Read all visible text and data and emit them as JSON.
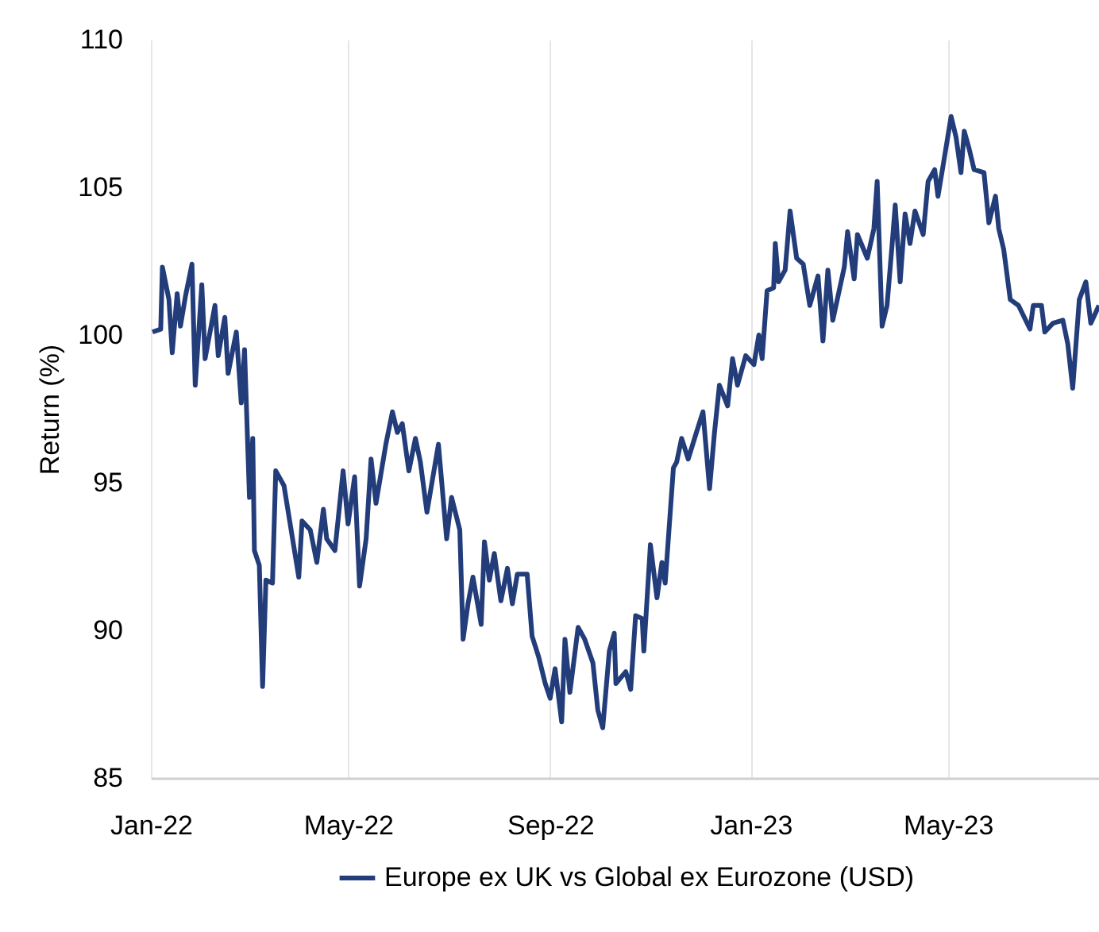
{
  "chart_data": {
    "type": "line",
    "ylabel": "Return (%)",
    "x": [
      "2022-01-02",
      "2022-01-07",
      "2022-01-08",
      "2022-01-12",
      "2022-01-14",
      "2022-01-17",
      "2022-01-19",
      "2022-01-22",
      "2022-01-26",
      "2022-01-28",
      "2022-02-01",
      "2022-02-03",
      "2022-02-09",
      "2022-02-11",
      "2022-02-15",
      "2022-02-17",
      "2022-02-22",
      "2022-02-25",
      "2022-02-27",
      "2022-03-02",
      "2022-03-04",
      "2022-03-05",
      "2022-03-08",
      "2022-03-10",
      "2022-03-12",
      "2022-03-16",
      "2022-03-18",
      "2022-03-23",
      "2022-04-01",
      "2022-04-03",
      "2022-04-08",
      "2022-04-12",
      "2022-04-16",
      "2022-04-18",
      "2022-04-23",
      "2022-04-28",
      "2022-05-01",
      "2022-05-05",
      "2022-05-08",
      "2022-05-12",
      "2022-05-15",
      "2022-05-18",
      "2022-05-24",
      "2022-05-28",
      "2022-05-31",
      "2022-06-03",
      "2022-06-07",
      "2022-06-11",
      "2022-06-14",
      "2022-06-18",
      "2022-06-25",
      "2022-06-30",
      "2022-07-03",
      "2022-07-08",
      "2022-07-10",
      "2022-07-13",
      "2022-07-16",
      "2022-07-21",
      "2022-07-23",
      "2022-07-26",
      "2022-07-29",
      "2022-08-02",
      "2022-08-06",
      "2022-08-09",
      "2022-08-12",
      "2022-08-18",
      "2022-08-21",
      "2022-08-25",
      "2022-08-29",
      "2022-09-01",
      "2022-09-04",
      "2022-09-08",
      "2022-09-10",
      "2022-09-13",
      "2022-09-18",
      "2022-09-22",
      "2022-09-27",
      "2022-09-30",
      "2022-10-03",
      "2022-10-07",
      "2022-10-10",
      "2022-10-11",
      "2022-10-17",
      "2022-10-20",
      "2022-10-23",
      "2022-10-27",
      "2022-10-28",
      "2022-11-01",
      "2022-11-05",
      "2022-11-08",
      "2022-11-10",
      "2022-11-15",
      "2022-11-17",
      "2022-11-20",
      "2022-11-24",
      "2022-11-29",
      "2022-12-03",
      "2022-12-07",
      "2022-12-10",
      "2022-12-13",
      "2022-12-18",
      "2022-12-21",
      "2022-12-24",
      "2022-12-29",
      "2023-01-03",
      "2023-01-06",
      "2023-01-08",
      "2023-01-11",
      "2023-01-15",
      "2023-01-16",
      "2023-01-18",
      "2023-01-22",
      "2023-01-25",
      "2023-01-29",
      "2023-02-02",
      "2023-02-06",
      "2023-02-11",
      "2023-02-14",
      "2023-02-17",
      "2023-02-20",
      "2023-02-27",
      "2023-03-01",
      "2023-03-05",
      "2023-03-07",
      "2023-03-13",
      "2023-03-17",
      "2023-03-19",
      "2023-03-22",
      "2023-03-25",
      "2023-03-28",
      "2023-03-30",
      "2023-04-02",
      "2023-04-05",
      "2023-04-08",
      "2023-04-11",
      "2023-04-16",
      "2023-04-19",
      "2023-04-23",
      "2023-04-25",
      "2023-04-28",
      "2023-05-03",
      "2023-05-06",
      "2023-05-09",
      "2023-05-11",
      "2023-05-14",
      "2023-05-17",
      "2023-05-23",
      "2023-05-26",
      "2023-05-30",
      "2023-06-01",
      "2023-06-04",
      "2023-06-08",
      "2023-06-13",
      "2023-06-20",
      "2023-06-22",
      "2023-06-27",
      "2023-06-29",
      "2023-07-04",
      "2023-07-10",
      "2023-07-13",
      "2023-07-16",
      "2023-07-20",
      "2023-07-24",
      "2023-07-27",
      "2023-08-01"
    ],
    "series": [
      {
        "name": "Europe ex UK vs Global ex Eurozone (USD)",
        "color": "#233d7b",
        "values": [
          100.1,
          100.2,
          102.3,
          101.2,
          99.4,
          101.4,
          100.3,
          101.3,
          102.4,
          98.3,
          101.7,
          99.2,
          101.0,
          99.3,
          100.6,
          98.7,
          100.1,
          97.7,
          99.5,
          94.5,
          96.5,
          92.7,
          92.2,
          88.1,
          91.7,
          91.6,
          95.4,
          94.9,
          91.8,
          93.7,
          93.4,
          92.3,
          94.1,
          93.1,
          92.7,
          95.4,
          93.6,
          95.2,
          91.5,
          93.1,
          95.8,
          94.3,
          96.3,
          97.4,
          96.7,
          97.0,
          95.4,
          96.5,
          95.7,
          94.0,
          96.3,
          93.1,
          94.5,
          93.4,
          89.7,
          90.9,
          91.8,
          90.2,
          93.0,
          91.7,
          92.6,
          91.0,
          92.1,
          90.9,
          91.9,
          91.9,
          89.8,
          89.1,
          88.2,
          87.7,
          88.7,
          86.9,
          89.7,
          87.9,
          90.1,
          89.7,
          88.9,
          87.3,
          86.7,
          89.3,
          89.9,
          88.2,
          88.6,
          88.0,
          90.5,
          90.4,
          89.3,
          92.9,
          91.1,
          92.3,
          91.6,
          95.5,
          95.7,
          96.5,
          95.8,
          96.7,
          97.4,
          94.8,
          96.7,
          98.3,
          97.6,
          99.2,
          98.3,
          99.3,
          99.0,
          100.0,
          99.2,
          101.5,
          101.6,
          103.1,
          101.8,
          102.2,
          104.2,
          102.6,
          102.4,
          101.0,
          102.0,
          99.8,
          102.2,
          100.5,
          102.3,
          103.5,
          101.9,
          103.4,
          102.6,
          103.6,
          105.2,
          100.3,
          101.0,
          103.0,
          104.4,
          101.8,
          104.1,
          103.1,
          104.2,
          103.4,
          105.2,
          105.6,
          104.7,
          105.7,
          107.4,
          106.7,
          105.5,
          106.9,
          106.3,
          105.6,
          105.5,
          103.8,
          104.7,
          103.6,
          102.9,
          101.2,
          101.0,
          100.2,
          101.0,
          101.0,
          100.1,
          100.4,
          100.5,
          99.7,
          98.2,
          101.2,
          101.8,
          100.4,
          101.0
        ]
      }
    ],
    "xlim": [
      "2022-01-01",
      "2023-08-01"
    ],
    "xticks": [
      {
        "value": "2022-01-01",
        "label": "Jan-22"
      },
      {
        "value": "2022-05-01",
        "label": "May-22"
      },
      {
        "value": "2022-09-01",
        "label": "Sep-22"
      },
      {
        "value": "2023-01-01",
        "label": "Jan-23"
      },
      {
        "value": "2023-05-01",
        "label": "May-23"
      }
    ],
    "ylim": [
      85,
      110
    ],
    "yticks": [
      85,
      90,
      95,
      100,
      105,
      110
    ],
    "grid": "x",
    "legend": "bottom"
  }
}
